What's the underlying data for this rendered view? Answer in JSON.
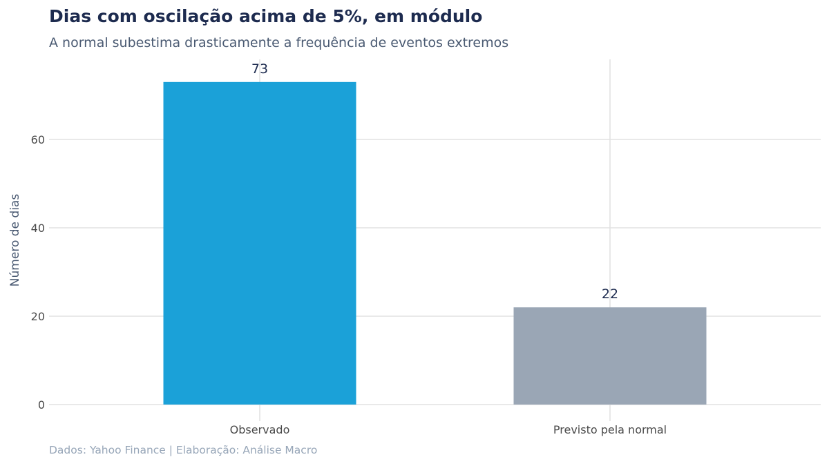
{
  "chart_data": {
    "type": "bar",
    "title": "Dias com oscilação acima de 5%, em módulo",
    "subtitle": "A normal subestima drasticamente a frequência de eventos extremos",
    "xlabel": "",
    "ylabel": "Número de dias",
    "categories": [
      "Observado",
      "Previsto pela normal"
    ],
    "values": [
      73,
      22
    ],
    "data_labels": [
      "73",
      "22"
    ],
    "colors": [
      "#1ba1d8",
      "#9aa6b5"
    ],
    "yticks": [
      "0",
      "20",
      "40",
      "60"
    ],
    "ylim": [
      0,
      79
    ],
    "grid": true,
    "legend": "none"
  },
  "footer": {
    "source": "Dados: Yahoo Finance | Elaboração: Análise Macro"
  }
}
